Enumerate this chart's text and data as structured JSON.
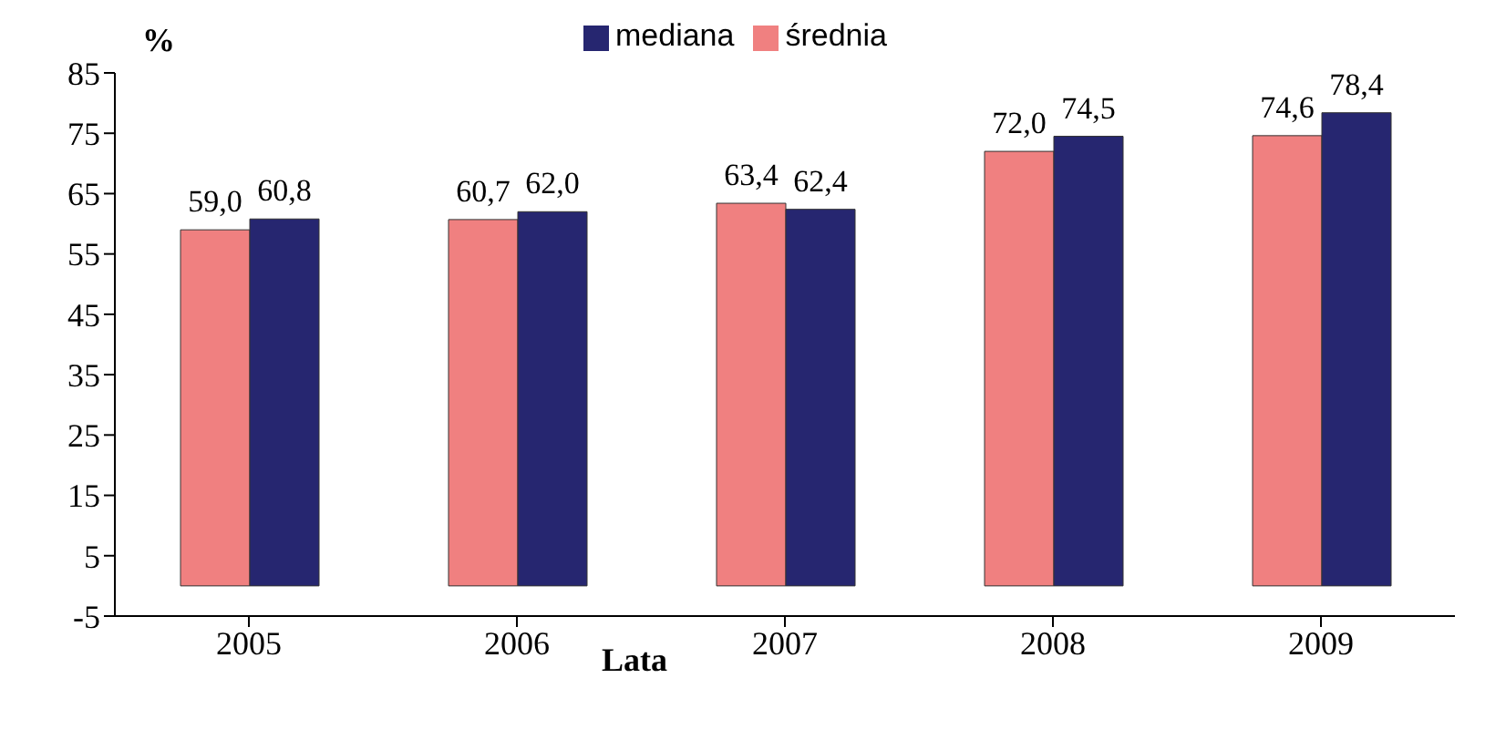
{
  "chart_data": {
    "type": "bar",
    "ylabel": "%",
    "xlabel": "Lata",
    "categories": [
      "2005",
      "2006",
      "2007",
      "2008",
      "2009"
    ],
    "series": [
      {
        "name": "średnia",
        "color": "#f08080",
        "values": [
          59.0,
          60.7,
          63.4,
          72.0,
          74.6
        ],
        "value_labels": [
          "59,0",
          "60,7",
          "63,4",
          "72,0",
          "74,6"
        ]
      },
      {
        "name": "mediana",
        "color": "#262670",
        "values": [
          60.8,
          62.0,
          62.4,
          74.5,
          78.4
        ],
        "value_labels": [
          "60,8",
          "62,0",
          "62,4",
          "74,5",
          "78,4"
        ]
      }
    ],
    "ylim": [
      -5,
      85
    ],
    "yticks": [
      -5,
      5,
      15,
      25,
      35,
      45,
      55,
      65,
      75,
      85
    ],
    "grid": false,
    "legend": "top"
  }
}
